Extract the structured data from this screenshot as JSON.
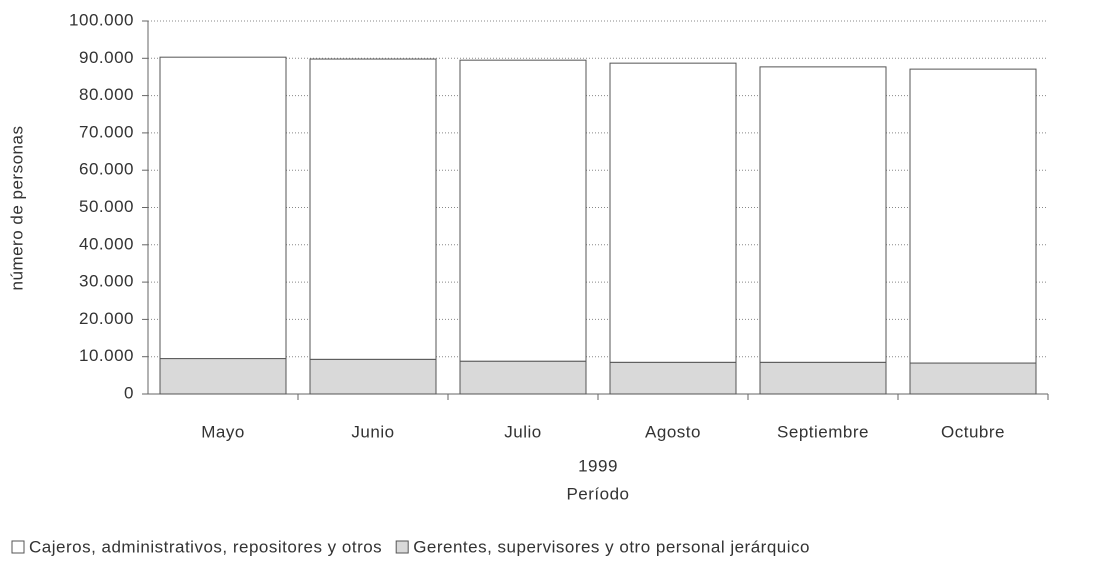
{
  "chart_data": {
    "type": "stacked_bar",
    "categories": [
      "Mayo",
      "Junio",
      "Julio",
      "Agosto",
      "Septiembre",
      "Octubre"
    ],
    "series": [
      {
        "name": "Cajeros, administrativos, repositores y otros",
        "color": "#ffffff",
        "values": [
          80800,
          80500,
          80700,
          80200,
          79200,
          78800
        ]
      },
      {
        "name": "Gerentes, supervisores y otro personal jerárquico",
        "color": "#d9d9d9",
        "values": [
          9500,
          9300,
          8800,
          8500,
          8500,
          8300
        ]
      }
    ],
    "ylabel": "número de personas",
    "xlabel_lines": [
      "1999",
      "Período"
    ],
    "ylim": [
      0,
      100000
    ],
    "yticks": [
      0,
      {
        "value": 10000,
        "label": "10.000"
      },
      {
        "value": 20000,
        "label": "20.000"
      },
      {
        "value": 30000,
        "label": "30.000"
      },
      {
        "value": 40000,
        "label": "40.000"
      },
      {
        "value": 50000,
        "label": "50.000"
      },
      {
        "value": 60000,
        "label": "60.000"
      },
      {
        "value": 70000,
        "label": "70.000"
      },
      {
        "value": 80000,
        "label": "80.000"
      },
      {
        "value": 90000,
        "label": "90.000"
      },
      {
        "value": 100000,
        "label": "100.000"
      }
    ],
    "grid": true,
    "legend": "bottom"
  }
}
